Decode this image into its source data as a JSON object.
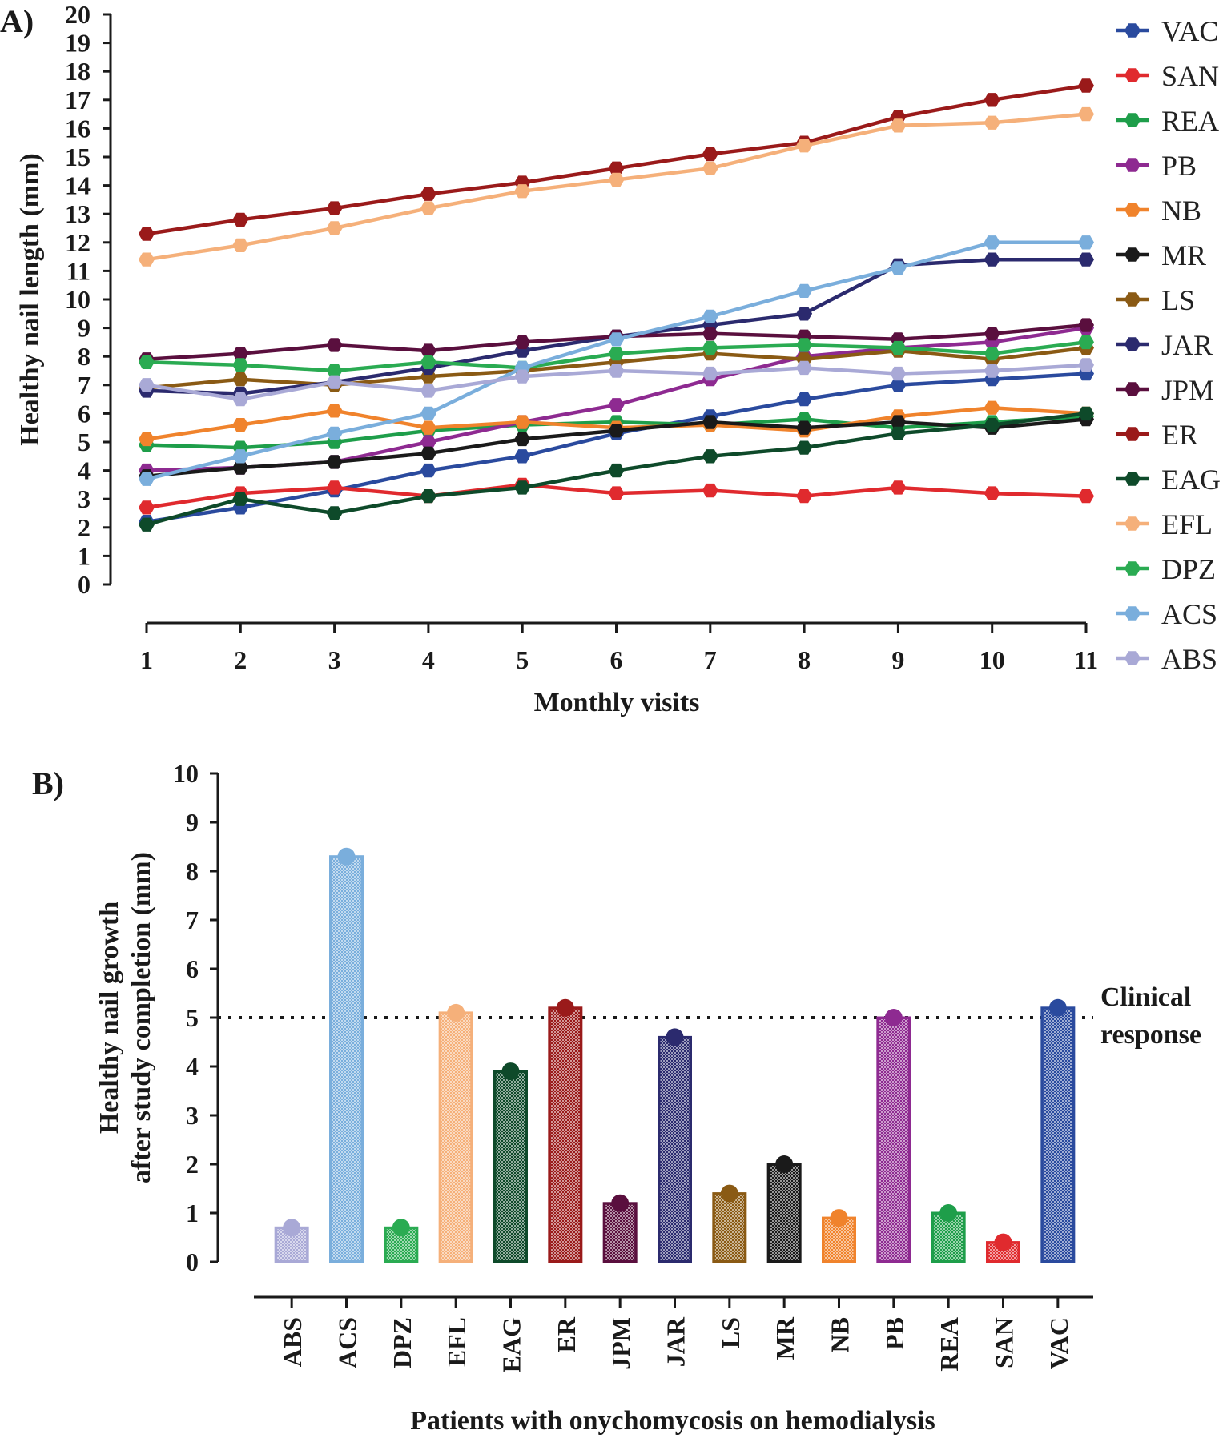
{
  "chart_data": [
    {
      "panel": "A)",
      "type": "line",
      "xlabel": "Monthly visits",
      "ylabel": "Healthy nail length (mm)",
      "ylim": [
        0,
        20
      ],
      "xlim": [
        1,
        11
      ],
      "y_ticks": [
        "0",
        "1",
        "2",
        "3",
        "4",
        "5",
        "6",
        "7",
        "8",
        "9",
        "10",
        "11",
        "12",
        "13",
        "14",
        "15",
        "16",
        "17",
        "18",
        "19",
        "20"
      ],
      "x": [
        "1",
        "2",
        "3",
        "4",
        "5",
        "6",
        "7",
        "8",
        "9",
        "10",
        "11"
      ],
      "legend_position": "right",
      "series": [
        {
          "name": "VAC",
          "color": "#2a4a9e",
          "values": [
            2.2,
            2.7,
            3.3,
            4.0,
            4.5,
            5.3,
            5.9,
            6.5,
            7.0,
            7.2,
            7.4
          ]
        },
        {
          "name": "SAN",
          "color": "#e02a2e",
          "values": [
            2.7,
            3.2,
            3.4,
            3.1,
            3.5,
            3.2,
            3.3,
            3.1,
            3.4,
            3.2,
            3.1
          ]
        },
        {
          "name": "REA",
          "color": "#1e9e4a",
          "values": [
            4.9,
            4.8,
            5.0,
            5.4,
            5.6,
            5.7,
            5.6,
            5.8,
            5.5,
            5.7,
            5.9
          ]
        },
        {
          "name": "PB",
          "color": "#8e2a91",
          "values": [
            4.0,
            4.1,
            4.3,
            5.0,
            5.7,
            6.3,
            7.2,
            8.0,
            8.3,
            8.5,
            9.0
          ]
        },
        {
          "name": "NB",
          "color": "#f0832c",
          "values": [
            5.1,
            5.6,
            6.1,
            5.5,
            5.7,
            5.5,
            5.6,
            5.4,
            5.9,
            6.2,
            6.0
          ]
        },
        {
          "name": "MR",
          "color": "#1a1a1a",
          "values": [
            3.8,
            4.1,
            4.3,
            4.6,
            5.1,
            5.4,
            5.7,
            5.5,
            5.7,
            5.5,
            5.8
          ]
        },
        {
          "name": "LS",
          "color": "#8a5a14",
          "values": [
            6.9,
            7.2,
            7.0,
            7.3,
            7.5,
            7.8,
            8.1,
            7.9,
            8.2,
            7.9,
            8.3
          ]
        },
        {
          "name": "JAR",
          "color": "#2b2a6e",
          "values": [
            6.8,
            6.7,
            7.1,
            7.6,
            8.2,
            8.7,
            9.1,
            9.5,
            11.2,
            11.4,
            11.4
          ]
        },
        {
          "name": "JPM",
          "color": "#5a0f3e",
          "values": [
            7.9,
            8.1,
            8.4,
            8.2,
            8.5,
            8.7,
            8.8,
            8.7,
            8.6,
            8.8,
            9.1
          ]
        },
        {
          "name": "ER",
          "color": "#9a1a1a",
          "values": [
            12.3,
            12.8,
            13.2,
            13.7,
            14.1,
            14.6,
            15.1,
            15.5,
            16.4,
            17.0,
            17.5
          ]
        },
        {
          "name": "EAG",
          "color": "#0e4a2a",
          "values": [
            2.1,
            3.0,
            2.5,
            3.1,
            3.4,
            4.0,
            4.5,
            4.8,
            5.3,
            5.6,
            6.0
          ]
        },
        {
          "name": "EFL",
          "color": "#f5b07a",
          "values": [
            11.4,
            11.9,
            12.5,
            13.2,
            13.8,
            14.2,
            14.6,
            15.4,
            16.1,
            16.2,
            16.5
          ]
        },
        {
          "name": "DPZ",
          "color": "#2aab52",
          "values": [
            7.8,
            7.7,
            7.5,
            7.8,
            7.6,
            8.1,
            8.3,
            8.4,
            8.3,
            8.1,
            8.5
          ]
        },
        {
          "name": "ACS",
          "color": "#7aaedc",
          "values": [
            3.7,
            4.5,
            5.3,
            6.0,
            7.6,
            8.6,
            9.4,
            10.3,
            11.1,
            12.0,
            12.0
          ]
        },
        {
          "name": "ABS",
          "color": "#a9a9d6",
          "values": [
            7.0,
            6.5,
            7.1,
            6.8,
            7.3,
            7.5,
            7.4,
            7.6,
            7.4,
            7.5,
            7.7
          ]
        }
      ]
    },
    {
      "panel": "B)",
      "type": "bar",
      "xlabel": "Patients with onychomycosis on hemodialysis",
      "ylabel": [
        "Healthy nail growth",
        "after study completion (mm)"
      ],
      "ylim": [
        0,
        10
      ],
      "y_ticks": [
        "0",
        "1",
        "2",
        "3",
        "4",
        "5",
        "6",
        "7",
        "8",
        "9",
        "10"
      ],
      "categories": [
        "ABS",
        "ACS",
        "DPZ",
        "EFL",
        "EAG",
        "ER",
        "JPM",
        "JAR",
        "LS",
        "MR",
        "NB",
        "PB",
        "REA",
        "SAN",
        "VAC"
      ],
      "values": [
        0.7,
        8.3,
        0.7,
        5.1,
        3.9,
        5.2,
        1.2,
        4.6,
        1.4,
        2.0,
        0.9,
        5.0,
        1.0,
        0.4,
        5.2
      ],
      "colors": [
        "#a9a9d6",
        "#7aaedc",
        "#2aab52",
        "#f5b07a",
        "#0e4a2a",
        "#9a1a1a",
        "#5a0f3e",
        "#2b2a6e",
        "#8a5a14",
        "#1a1a1a",
        "#f0832c",
        "#8e2a91",
        "#1e9e4a",
        "#e02a2e",
        "#2a4a9e"
      ],
      "reference_line": {
        "value": 5,
        "label": [
          "Clinical",
          "response"
        ]
      }
    }
  ]
}
